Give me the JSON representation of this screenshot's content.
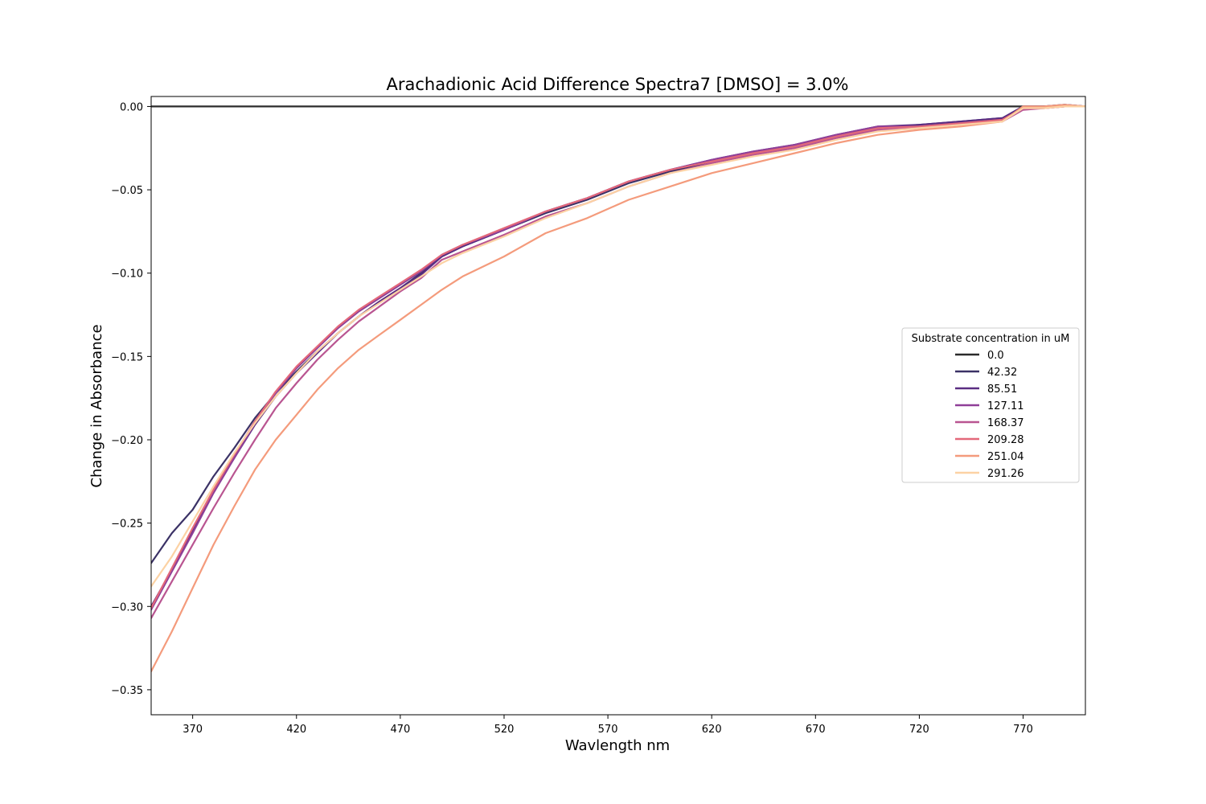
{
  "chart_data": {
    "type": "line",
    "title": "Arachadionic Acid Difference Spectra7 [DMSO] = 3.0%",
    "xlabel": "Wavlength nm",
    "ylabel": "Change in Absorbance",
    "xlim": [
      350,
      800
    ],
    "ylim": [
      -0.365,
      0.006
    ],
    "xticks": [
      370,
      420,
      470,
      520,
      570,
      620,
      670,
      720,
      770
    ],
    "yticks": [
      0.0,
      -0.05,
      -0.1,
      -0.15,
      -0.2,
      -0.25,
      -0.3,
      -0.35
    ],
    "ytick_labels": [
      "0.00",
      "−0.05",
      "−0.10",
      "−0.15",
      "−0.20",
      "−0.25",
      "−0.30",
      "−0.35"
    ],
    "grid": false,
    "legend": {
      "title": "Substrate concentration in uM",
      "placement": "center-right"
    },
    "x": [
      350,
      360,
      370,
      380,
      390,
      400,
      410,
      420,
      430,
      440,
      450,
      460,
      470,
      480,
      490,
      500,
      520,
      540,
      560,
      580,
      600,
      620,
      640,
      660,
      680,
      700,
      720,
      740,
      760,
      770,
      780,
      790,
      800
    ],
    "series": [
      {
        "name": "0.0",
        "color": "#2b2b2b",
        "values": [
          0,
          0,
          0,
          0,
          0,
          0,
          0,
          0,
          0,
          0,
          0,
          0,
          0,
          0,
          0,
          0,
          0,
          0,
          0,
          0,
          0,
          0,
          0,
          0,
          0,
          0,
          0,
          0,
          0,
          0,
          0,
          0,
          0
        ]
      },
      {
        "name": "42.32",
        "color": "#3b3266",
        "values": [
          -0.274,
          -0.256,
          -0.242,
          -0.222,
          -0.205,
          -0.187,
          -0.172,
          -0.159,
          -0.147,
          -0.136,
          -0.126,
          -0.117,
          -0.109,
          -0.1,
          -0.09,
          -0.084,
          -0.074,
          -0.064,
          -0.056,
          -0.046,
          -0.039,
          -0.033,
          -0.028,
          -0.024,
          -0.018,
          -0.013,
          -0.011,
          -0.009,
          -0.007,
          0.0,
          0.0,
          0.001,
          0.0
        ]
      },
      {
        "name": "85.51",
        "color": "#5a2d82",
        "values": [
          -0.3,
          -0.278,
          -0.255,
          -0.231,
          -0.211,
          -0.191,
          -0.174,
          -0.16,
          -0.148,
          -0.136,
          -0.126,
          -0.117,
          -0.109,
          -0.101,
          -0.09,
          -0.084,
          -0.074,
          -0.063,
          -0.055,
          -0.045,
          -0.038,
          -0.032,
          -0.027,
          -0.023,
          -0.017,
          -0.012,
          -0.011,
          -0.009,
          -0.007,
          0.0,
          0.0,
          0.001,
          0.0
        ]
      },
      {
        "name": "127.11",
        "color": "#8f3f98",
        "values": [
          -0.302,
          -0.279,
          -0.256,
          -0.232,
          -0.211,
          -0.19,
          -0.172,
          -0.157,
          -0.145,
          -0.133,
          -0.123,
          -0.115,
          -0.107,
          -0.099,
          -0.089,
          -0.083,
          -0.074,
          -0.063,
          -0.055,
          -0.045,
          -0.038,
          -0.032,
          -0.027,
          -0.023,
          -0.017,
          -0.012,
          -0.012,
          -0.01,
          -0.008,
          -0.001,
          -0.001,
          0.0,
          0.0
        ]
      },
      {
        "name": "168.37",
        "color": "#b95591",
        "values": [
          -0.307,
          -0.285,
          -0.263,
          -0.241,
          -0.22,
          -0.2,
          -0.181,
          -0.166,
          -0.152,
          -0.14,
          -0.129,
          -0.12,
          -0.111,
          -0.103,
          -0.092,
          -0.087,
          -0.077,
          -0.066,
          -0.058,
          -0.048,
          -0.04,
          -0.034,
          -0.029,
          -0.025,
          -0.019,
          -0.014,
          -0.013,
          -0.011,
          -0.009,
          -0.002,
          -0.001,
          0.0,
          0.0
        ]
      },
      {
        "name": "209.28",
        "color": "#e3687a",
        "values": [
          -0.301,
          -0.277,
          -0.253,
          -0.23,
          -0.209,
          -0.189,
          -0.171,
          -0.156,
          -0.144,
          -0.132,
          -0.122,
          -0.114,
          -0.106,
          -0.098,
          -0.089,
          -0.083,
          -0.073,
          -0.063,
          -0.055,
          -0.045,
          -0.038,
          -0.033,
          -0.028,
          -0.024,
          -0.018,
          -0.013,
          -0.012,
          -0.01,
          -0.008,
          -0.001,
          -0.001,
          0.0,
          0.0
        ]
      },
      {
        "name": "251.04",
        "color": "#f49b7c",
        "values": [
          -0.339,
          -0.315,
          -0.289,
          -0.263,
          -0.24,
          -0.218,
          -0.2,
          -0.185,
          -0.17,
          -0.157,
          -0.146,
          -0.137,
          -0.128,
          -0.119,
          -0.11,
          -0.102,
          -0.09,
          -0.076,
          -0.067,
          -0.056,
          -0.048,
          -0.04,
          -0.034,
          -0.028,
          -0.022,
          -0.017,
          -0.014,
          -0.012,
          -0.009,
          0.0,
          0.0,
          0.001,
          0.0
        ]
      },
      {
        "name": "291.26",
        "color": "#fcd2a4",
        "values": [
          -0.288,
          -0.27,
          -0.249,
          -0.228,
          -0.208,
          -0.19,
          -0.174,
          -0.16,
          -0.147,
          -0.136,
          -0.126,
          -0.118,
          -0.11,
          -0.102,
          -0.094,
          -0.088,
          -0.078,
          -0.067,
          -0.058,
          -0.048,
          -0.04,
          -0.035,
          -0.03,
          -0.026,
          -0.02,
          -0.015,
          -0.013,
          -0.011,
          -0.009,
          -0.001,
          -0.001,
          0.0,
          0.0
        ]
      }
    ]
  }
}
